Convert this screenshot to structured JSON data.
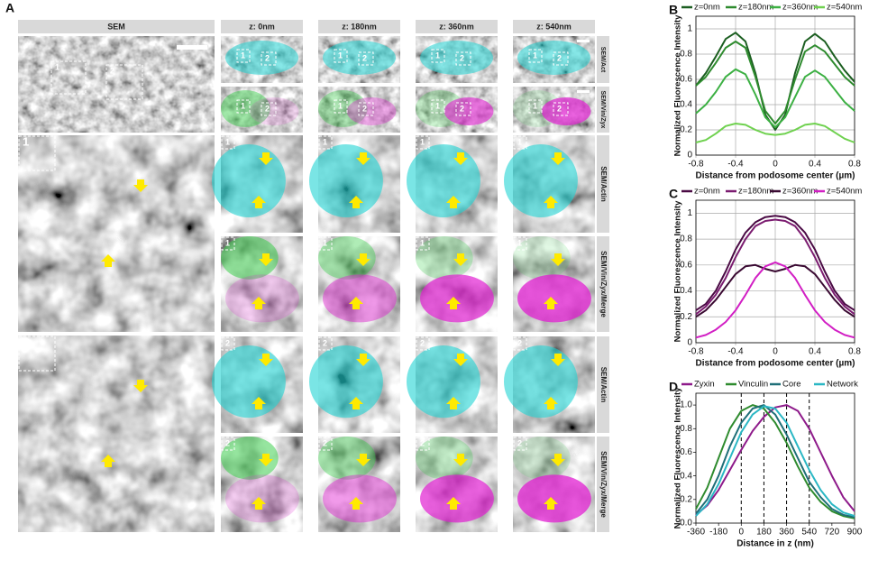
{
  "figure": {
    "panel_a": {
      "label": "A",
      "columns": [
        "SEM",
        "z: 0nm",
        "z: 180nm",
        "z: 360nm",
        "z: 540nm"
      ],
      "row_labels": [
        "SEM/Act",
        "SEM/Vin/Zyx",
        "SEM/Actin",
        "SEM/Vin/Zyx/Merge",
        "SEM/Actin",
        "SEM/Vin/Zyx/Merge"
      ],
      "region_labels": [
        "1",
        "2"
      ]
    }
  },
  "chart_data": [
    {
      "type": "line",
      "panel_label": "B",
      "xlabel": "Distance from podosome center (µm)",
      "ylabel": "Normalized Fluorescence Intensity",
      "x": [
        -0.8,
        -0.7,
        -0.6,
        -0.5,
        -0.4,
        -0.3,
        -0.2,
        -0.1,
        0,
        0.1,
        0.2,
        0.3,
        0.4,
        0.5,
        0.6,
        0.7,
        0.8
      ],
      "series": [
        {
          "name": "z=0nm",
          "color": "#1b5e20",
          "values": [
            0.55,
            0.65,
            0.78,
            0.92,
            0.97,
            0.9,
            0.65,
            0.32,
            0.2,
            0.32,
            0.65,
            0.9,
            0.96,
            0.9,
            0.78,
            0.67,
            0.58
          ]
        },
        {
          "name": "z=180nm",
          "color": "#2e8b2e",
          "values": [
            0.55,
            0.62,
            0.73,
            0.85,
            0.9,
            0.85,
            0.62,
            0.35,
            0.25,
            0.35,
            0.6,
            0.82,
            0.87,
            0.82,
            0.72,
            0.62,
            0.55
          ]
        },
        {
          "name": "z=360nm",
          "color": "#3cb043",
          "values": [
            0.33,
            0.4,
            0.5,
            0.62,
            0.68,
            0.64,
            0.48,
            0.3,
            0.22,
            0.3,
            0.46,
            0.62,
            0.67,
            0.62,
            0.52,
            0.42,
            0.35
          ]
        },
        {
          "name": "z=540nm",
          "color": "#6fd14f",
          "values": [
            0.1,
            0.12,
            0.17,
            0.23,
            0.25,
            0.24,
            0.2,
            0.17,
            0.16,
            0.17,
            0.2,
            0.24,
            0.25,
            0.23,
            0.18,
            0.13,
            0.1
          ]
        }
      ],
      "xlim": [
        -0.8,
        0.8
      ],
      "ylim": [
        0,
        1.1
      ],
      "xticks": [
        -0.8,
        -0.4,
        0,
        0.4,
        0.8
      ],
      "yticks": [
        0,
        0.2,
        0.4,
        0.6,
        0.8,
        1
      ],
      "grid": true,
      "legend": "top"
    },
    {
      "type": "line",
      "panel_label": "C",
      "xlabel": "Distance from podosome center (µm)",
      "ylabel": "Normalized Fluorescence Intensity",
      "x": [
        -0.8,
        -0.7,
        -0.6,
        -0.5,
        -0.4,
        -0.3,
        -0.2,
        -0.1,
        0,
        0.1,
        0.2,
        0.3,
        0.4,
        0.5,
        0.6,
        0.7,
        0.8
      ],
      "series": [
        {
          "name": "z=0nm",
          "color": "#4a0a44",
          "values": [
            0.25,
            0.3,
            0.4,
            0.55,
            0.72,
            0.85,
            0.93,
            0.97,
            0.98,
            0.97,
            0.93,
            0.85,
            0.72,
            0.55,
            0.4,
            0.3,
            0.25
          ]
        },
        {
          "name": "z=180nm",
          "color": "#7b1c70",
          "values": [
            0.22,
            0.28,
            0.37,
            0.5,
            0.66,
            0.8,
            0.9,
            0.94,
            0.95,
            0.94,
            0.9,
            0.8,
            0.66,
            0.5,
            0.37,
            0.28,
            0.22
          ]
        },
        {
          "name": "z=360nm",
          "color": "#3a0a32",
          "values": [
            0.2,
            0.25,
            0.33,
            0.43,
            0.53,
            0.59,
            0.6,
            0.57,
            0.55,
            0.57,
            0.6,
            0.59,
            0.53,
            0.43,
            0.33,
            0.25,
            0.2
          ]
        },
        {
          "name": "z=540nm",
          "color": "#d21fc4",
          "values": [
            0.04,
            0.06,
            0.1,
            0.16,
            0.25,
            0.37,
            0.5,
            0.59,
            0.62,
            0.59,
            0.5,
            0.37,
            0.25,
            0.16,
            0.1,
            0.06,
            0.04
          ]
        }
      ],
      "xlim": [
        -0.8,
        0.8
      ],
      "ylim": [
        0,
        1.1
      ],
      "xticks": [
        -0.8,
        -0.4,
        0,
        0.4,
        0.8
      ],
      "yticks": [
        0,
        0.2,
        0.4,
        0.6,
        0.8,
        1
      ],
      "grid": true,
      "legend": "top"
    },
    {
      "type": "line",
      "panel_label": "D",
      "xlabel": "Distance in z (nm)",
      "ylabel": "Normalized Fluorescence Intensity",
      "x": [
        -360,
        -270,
        -180,
        -90,
        0,
        90,
        180,
        270,
        360,
        450,
        540,
        630,
        720,
        810,
        900
      ],
      "series": [
        {
          "name": "Zyxin",
          "color": "#8e1a8a",
          "values": [
            0.07,
            0.15,
            0.28,
            0.45,
            0.62,
            0.78,
            0.9,
            0.98,
            1.0,
            0.95,
            0.8,
            0.6,
            0.4,
            0.22,
            0.1
          ]
        },
        {
          "name": "Vinculin",
          "color": "#2e8b2e",
          "values": [
            0.12,
            0.3,
            0.55,
            0.8,
            0.95,
            1.0,
            0.97,
            0.85,
            0.68,
            0.48,
            0.3,
            0.18,
            0.1,
            0.06,
            0.04
          ]
        },
        {
          "name": "Core",
          "color": "#1f6f78",
          "values": [
            0.08,
            0.2,
            0.4,
            0.65,
            0.85,
            0.97,
            1.0,
            0.92,
            0.75,
            0.55,
            0.35,
            0.22,
            0.12,
            0.07,
            0.05
          ]
        },
        {
          "name": "Network",
          "color": "#2ab7c4",
          "values": [
            0.06,
            0.16,
            0.33,
            0.55,
            0.77,
            0.92,
            0.99,
            0.97,
            0.85,
            0.65,
            0.45,
            0.28,
            0.16,
            0.09,
            0.06
          ]
        }
      ],
      "vlines": [
        0,
        180,
        360,
        540
      ],
      "xlim": [
        -360,
        900
      ],
      "ylim": [
        0,
        1.1
      ],
      "xticks": [
        -360,
        -180,
        0,
        180,
        360,
        540,
        720,
        900
      ],
      "yticks": [
        {
          "value": 0,
          "label": "0.0"
        },
        0.2,
        0.4,
        0.6,
        0.8,
        {
          "value": 1,
          "label": "1.0"
        }
      ],
      "grid": false,
      "legend": "top"
    }
  ]
}
